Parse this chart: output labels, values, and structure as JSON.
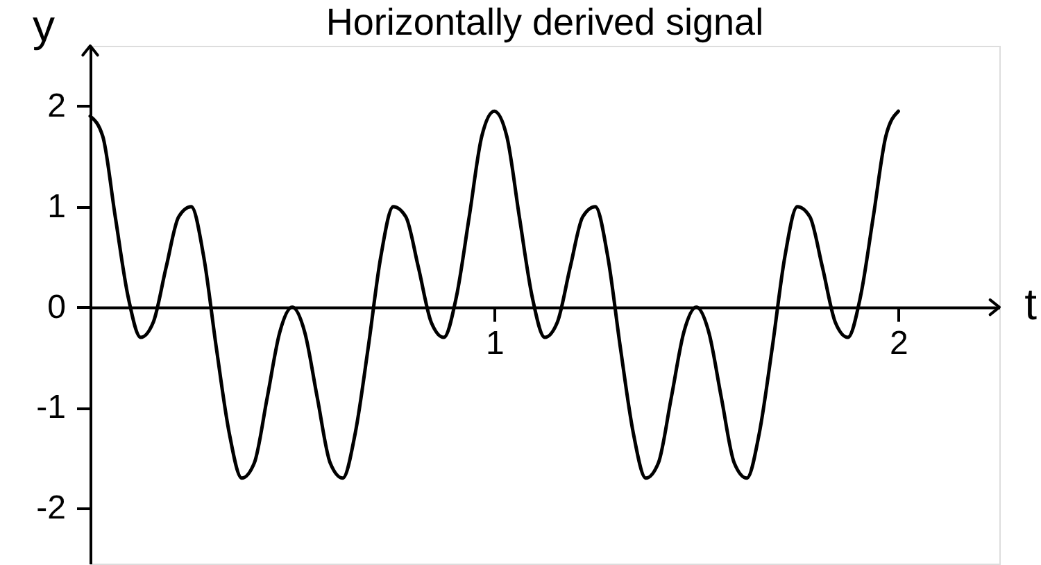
{
  "chart_data": {
    "type": "line",
    "title": "Horizontally derived signal",
    "xlabel": "t",
    "ylabel": "y",
    "x": [
      0,
      0.031,
      0.062,
      0.094,
      0.125,
      0.156,
      0.188,
      0.219,
      0.25,
      0.281,
      0.312,
      0.344,
      0.375,
      0.406,
      0.438,
      0.469,
      0.5,
      0.531,
      0.562,
      0.594,
      0.625,
      0.656,
      0.688,
      0.719,
      0.75,
      0.781,
      0.812,
      0.844,
      0.875,
      0.906,
      0.938,
      0.969,
      1,
      1.031,
      1.062,
      1.094,
      1.125,
      1.156,
      1.188,
      1.219,
      1.25,
      1.281,
      1.312,
      1.344,
      1.375,
      1.406,
      1.438,
      1.469,
      1.5,
      1.531,
      1.562,
      1.594,
      1.625,
      1.656,
      1.688,
      1.719,
      1.75,
      1.781,
      1.812,
      1.844,
      1.875,
      1.906,
      1.938,
      1.969,
      2
    ],
    "series": [
      {
        "color": "#000000",
        "values": [
          1.9,
          1.7,
          0.9,
          0.1,
          -0.3,
          -0.15,
          0.4,
          0.9,
          1.0,
          0.5,
          -0.4,
          -1.25,
          -1.7,
          -1.55,
          -0.9,
          -0.25,
          0,
          -0.25,
          -0.9,
          -1.55,
          -1.7,
          -1.25,
          -0.4,
          0.5,
          1.0,
          0.9,
          0.4,
          -0.15,
          -0.3,
          0.1,
          0.9,
          1.7,
          1.95,
          1.7,
          0.9,
          0.1,
          -0.3,
          -0.15,
          0.4,
          0.9,
          1.0,
          0.5,
          -0.4,
          -1.25,
          -1.7,
          -1.55,
          -0.9,
          -0.25,
          0,
          -0.25,
          -0.9,
          -1.55,
          -1.7,
          -1.25,
          -0.4,
          0.5,
          1.0,
          0.9,
          0.4,
          -0.15,
          -0.3,
          0.1,
          0.9,
          1.7,
          1.95
        ]
      }
    ],
    "xlim": [
      0,
      2.25
    ],
    "ylim": [
      -2.55,
      2.6
    ],
    "xticks": [
      1,
      2
    ],
    "yticks": [
      -2,
      -1,
      0,
      1,
      2
    ],
    "grid": false,
    "marker": "none",
    "line_style": "solid"
  }
}
